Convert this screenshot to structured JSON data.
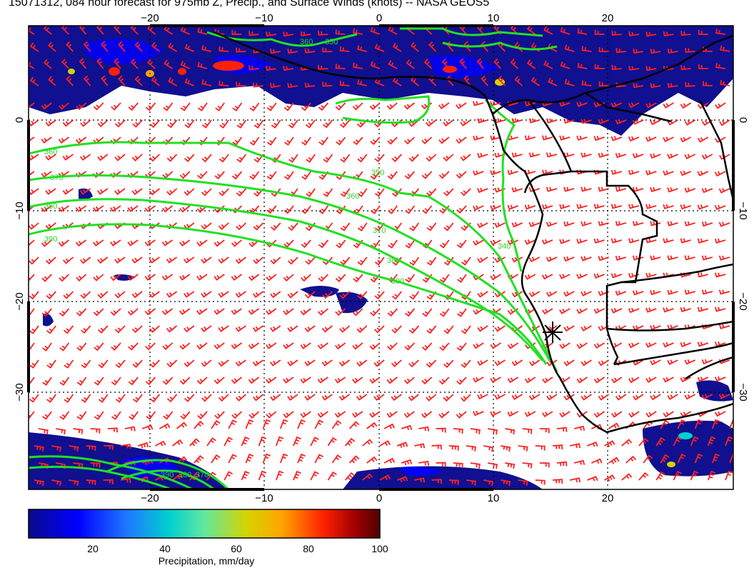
{
  "title": "15071312, 084 hour forecast for 975mb Z, Precip., and Surface Winds (knots) -- NASA GEOS5",
  "map": {
    "lon_range": [
      -30,
      30
    ],
    "lat_range": [
      -40,
      10
    ],
    "x_ticks": [
      {
        "value": -20,
        "label": "−20"
      },
      {
        "value": -10,
        "label": "−10"
      },
      {
        "value": 0,
        "label": "0"
      },
      {
        "value": 10,
        "label": "10"
      },
      {
        "value": 20,
        "label": "20"
      }
    ],
    "y_ticks": [
      {
        "value": 0,
        "label": "0"
      },
      {
        "value": -10,
        "label": "−10"
      },
      {
        "value": -20,
        "label": "−20"
      },
      {
        "value": -30,
        "label": "−30"
      }
    ],
    "gridlines": "dotted",
    "contour_color": "#22e022",
    "coast_color": "#000000",
    "barb_color": "#ff2020",
    "contour_labels": [
      "360",
      "370",
      "380",
      "390",
      "350",
      "360",
      "370",
      "380",
      "390",
      "360",
      "350",
      "340",
      "390",
      "380",
      "370"
    ],
    "marker": "asterisk"
  },
  "colorbar": {
    "label": "Precipitation, mm/day",
    "ticks": [
      "20",
      "40",
      "60",
      "80",
      "100"
    ],
    "colors": [
      "#0a0a8c",
      "#0000ff",
      "#1e90ff",
      "#00ced1",
      "#7fffd4",
      "#d4d400",
      "#ffa500",
      "#ff2000",
      "#8b0000",
      "#500000"
    ]
  }
}
